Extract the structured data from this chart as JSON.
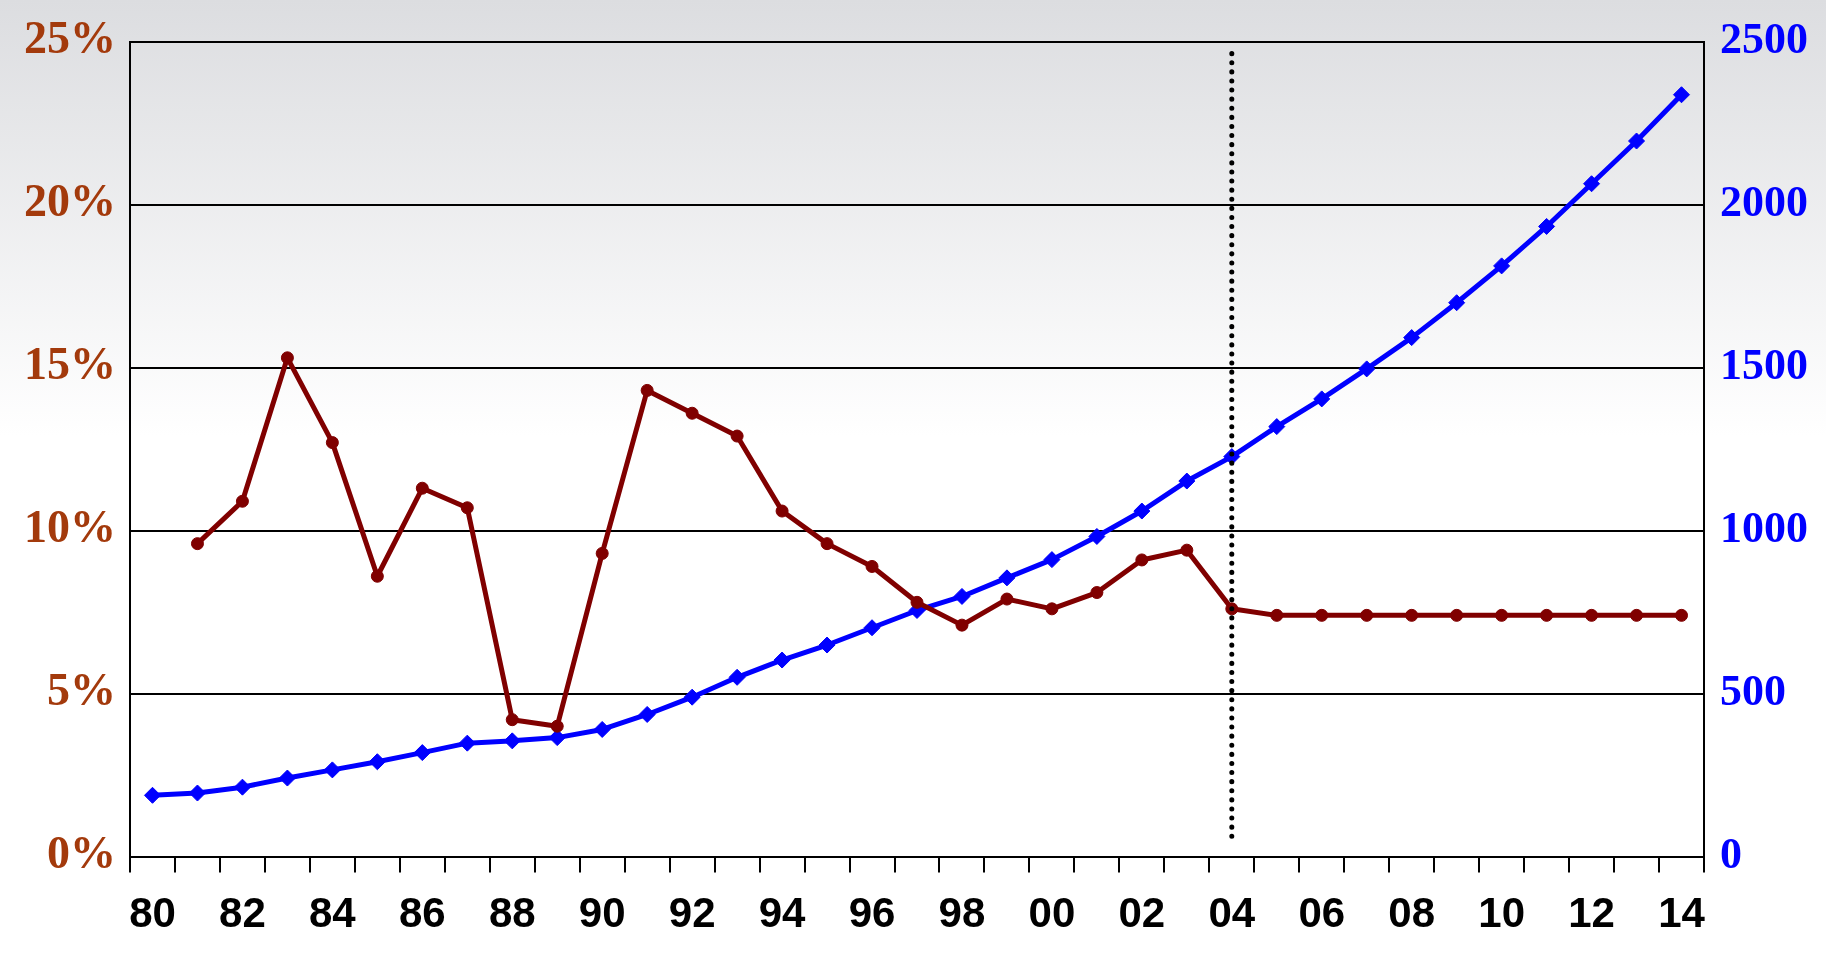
{
  "chart_data": {
    "type": "line",
    "categories": [
      "80",
      null,
      "82",
      null,
      "84",
      null,
      "86",
      null,
      "88",
      null,
      "90",
      null,
      "92",
      null,
      "94",
      null,
      "96",
      null,
      "98",
      null,
      "00",
      null,
      "02",
      null,
      "04",
      null,
      "06",
      null,
      "08",
      null,
      "10",
      null,
      "12",
      null,
      "14"
    ],
    "series": [
      {
        "color": "#800000",
        "marker": "circle",
        "values": [
          null,
          9.6,
          10.9,
          15.3,
          12.7,
          8.6,
          11.3,
          10.7,
          4.2,
          4.0,
          9.3,
          14.3,
          13.6,
          12.9,
          10.6,
          9.6,
          8.9,
          7.8,
          7.1,
          7.9,
          7.6,
          8.1,
          9.1,
          9.4,
          7.6,
          7.4,
          7.4,
          7.4,
          7.4,
          7.4,
          7.4,
          7.4,
          7.4,
          7.4,
          7.4
        ]
      },
      {
        "color": "#0000ff",
        "marker": "diamond",
        "axis": "y2",
        "values": [
          188,
          195,
          213,
          241,
          266,
          291,
          319,
          348,
          355,
          365,
          390,
          436,
          489,
          550,
          603,
          649,
          702,
          755,
          798,
          855,
          911,
          982,
          1060,
          1152,
          1227,
          1319,
          1404,
          1496,
          1592,
          1699,
          1812,
          1933,
          2064,
          2195,
          2337
        ]
      }
    ],
    "ylim": [
      0,
      25
    ],
    "yticks": [
      {
        "value": 0,
        "label": "0%"
      },
      {
        "value": 5,
        "label": "5%"
      },
      {
        "value": 10,
        "label": "10%"
      },
      {
        "value": 15,
        "label": "15%"
      },
      {
        "value": 20,
        "label": "20%"
      },
      {
        "value": 25,
        "label": "25%"
      }
    ],
    "y2lim": [
      0,
      2500
    ],
    "y2ticks": [
      0,
      500,
      1000,
      1500,
      2000,
      2500
    ],
    "ref_lines": [
      {
        "axis": "x",
        "value": "04",
        "color": "#000000",
        "line_style": "dotted"
      }
    ],
    "grid": "y",
    "legend": false,
    "line_style": "solid"
  }
}
